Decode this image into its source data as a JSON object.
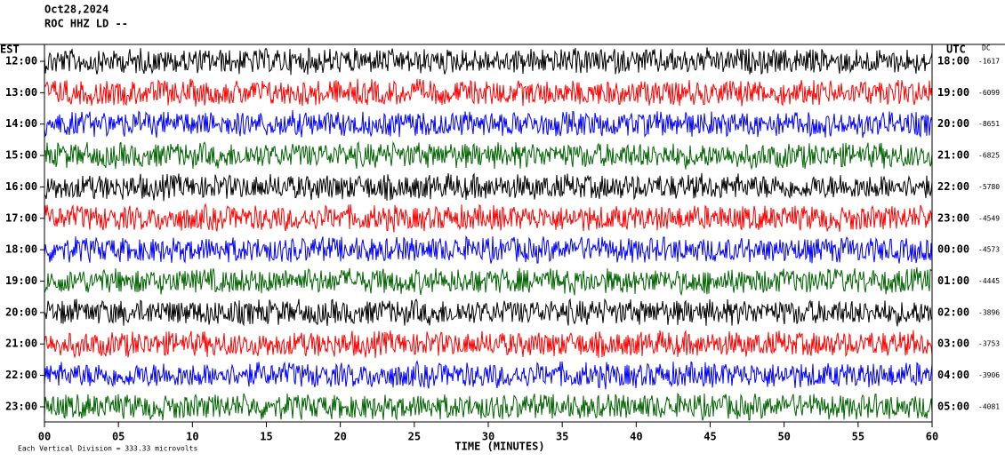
{
  "chart_data": {
    "type": "helicorder",
    "title": "Oct28,2024",
    "subtitle": "ROC HHZ LD --",
    "y_label_left": "EST",
    "y_label_right": "UTC",
    "dc_label": "DC",
    "x_label": "TIME (MINUTES)",
    "footnote": "Each Vertical Division =  333.33 microvolts",
    "xlim": [
      0,
      60
    ],
    "xticks": [
      {
        "value": 0,
        "label": "00"
      },
      {
        "value": 5,
        "label": "05"
      },
      10,
      15,
      20,
      25,
      30,
      35,
      40,
      45,
      50,
      55,
      60
    ],
    "rows": [
      {
        "est": "12:00",
        "utc": "18:00",
        "dc": -1617,
        "color": "#000000"
      },
      {
        "est": "13:00",
        "utc": "19:00",
        "dc": -6099,
        "color": "#ff0000"
      },
      {
        "est": "14:00",
        "utc": "20:00",
        "dc": -8651,
        "color": "#0000ff"
      },
      {
        "est": "15:00",
        "utc": "21:00",
        "dc": -6825,
        "color": "#006400"
      },
      {
        "est": "16:00",
        "utc": "22:00",
        "dc": -5780,
        "color": "#000000"
      },
      {
        "est": "17:00",
        "utc": "23:00",
        "dc": -4549,
        "color": "#ff0000"
      },
      {
        "est": "18:00",
        "utc": "00:00",
        "dc": -4573,
        "color": "#0000ff"
      },
      {
        "est": "19:00",
        "utc": "01:00",
        "dc": -4445,
        "color": "#006400"
      },
      {
        "est": "20:00",
        "utc": "02:00",
        "dc": -3896,
        "color": "#000000"
      },
      {
        "est": "21:00",
        "utc": "03:00",
        "dc": -3753,
        "color": "#ff0000"
      },
      {
        "est": "22:00",
        "utc": "04:00",
        "dc": -3906,
        "color": "#0000ff"
      },
      {
        "est": "23:00",
        "utc": "05:00",
        "dc": -4081,
        "color": "#006400"
      }
    ]
  }
}
